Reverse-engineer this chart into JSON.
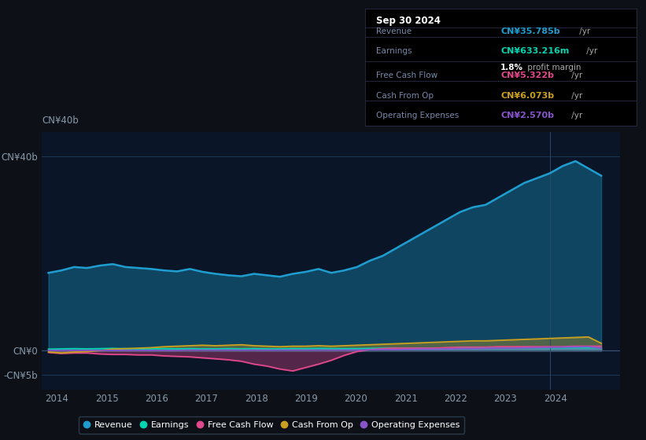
{
  "bg_color": "#0d1117",
  "plot_bg_color": "#0a1628",
  "title": "Sep 30 2024",
  "yticks": [
    "CN¥40b",
    "CN¥0",
    "-CN¥5b"
  ],
  "ytick_values": [
    40,
    0,
    -5
  ],
  "ylim": [
    -8,
    45
  ],
  "xticks": [
    2014,
    2015,
    2016,
    2017,
    2018,
    2019,
    2020,
    2021,
    2022,
    2023,
    2024
  ],
  "xlim_start": 2013.7,
  "xlim_end": 2025.3,
  "line_colors": {
    "Revenue": "#1e9dce",
    "Earnings": "#00d4b0",
    "Free Cash Flow": "#e0488b",
    "Cash From Op": "#c8a020",
    "Operating Expenses": "#8855cc"
  },
  "legend_labels": [
    "Revenue",
    "Earnings",
    "Free Cash Flow",
    "Cash From Op",
    "Operating Expenses"
  ],
  "legend_colors": [
    "#1e9dce",
    "#00d4b0",
    "#e0488b",
    "#c8a020",
    "#8855cc"
  ],
  "info_title": "Sep 30 2024",
  "info_rows": [
    {
      "label": "Revenue",
      "value": "CN¥35.785b",
      "suffix": " /yr",
      "color": "#1e9dce"
    },
    {
      "label": "Earnings",
      "value": "CN¥633.216m",
      "suffix": " /yr",
      "color": "#00d4b0",
      "extra_val": "1.8%",
      "extra_text": " profit margin"
    },
    {
      "label": "Free Cash Flow",
      "value": "CN¥5.322b",
      "suffix": " /yr",
      "color": "#e0488b"
    },
    {
      "label": "Cash From Op",
      "value": "CN¥6.073b",
      "suffix": " /yr",
      "color": "#c8a020"
    },
    {
      "label": "Operating Expenses",
      "value": "CN¥2.570b",
      "suffix": " /yr",
      "color": "#8855cc"
    }
  ]
}
